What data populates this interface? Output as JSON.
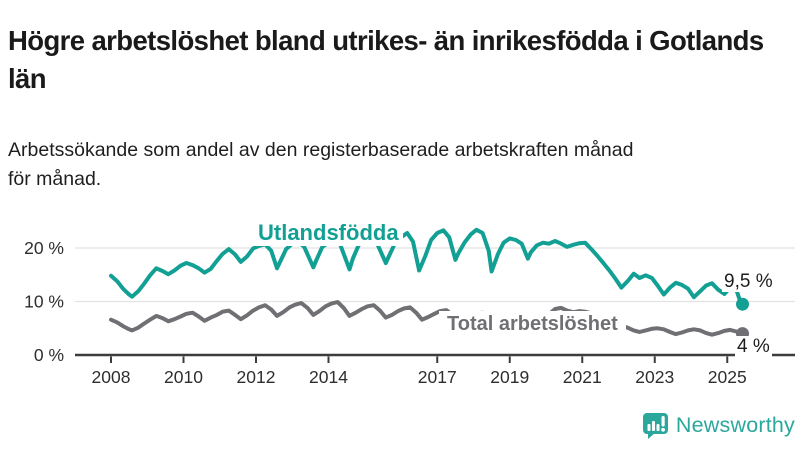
{
  "header": {
    "title": "Högre arbetslöshet bland utrikes- än inrikesfödda i Gotlands län",
    "subtitle": "Arbetssökande som andel av den registerbaserade arbetskraften månad för månad."
  },
  "chart_data": {
    "type": "line",
    "x_unit": "decimal_year",
    "x_range": [
      2008.0,
      2025.42
    ],
    "ylim": [
      0,
      25
    ],
    "grid": "horizontal",
    "y_ticks": [
      {
        "value": 0,
        "label": "0 %"
      },
      {
        "value": 10,
        "label": "10 %"
      },
      {
        "value": 20,
        "label": "20 %"
      }
    ],
    "x_ticks": [
      {
        "value": 2008,
        "label": "2008"
      },
      {
        "value": 2010,
        "label": "2010"
      },
      {
        "value": 2012,
        "label": "2012"
      },
      {
        "value": 2014,
        "label": "2014"
      },
      {
        "value": 2017,
        "label": "2017"
      },
      {
        "value": 2019,
        "label": "2019"
      },
      {
        "value": 2021,
        "label": "2021"
      },
      {
        "value": 2023,
        "label": "2023"
      },
      {
        "value": 2025,
        "label": "2025"
      }
    ],
    "series": [
      {
        "name": "Utlandsfödda",
        "color": "#13a094",
        "end_label": "9,5 %",
        "end_value": 9.5,
        "points": [
          [
            2008.0,
            14.8
          ],
          [
            2008.17,
            13.8
          ],
          [
            2008.33,
            12.4
          ],
          [
            2008.5,
            11.3
          ],
          [
            2008.58,
            10.9
          ],
          [
            2008.75,
            11.9
          ],
          [
            2008.92,
            13.4
          ],
          [
            2009.08,
            14.9
          ],
          [
            2009.25,
            16.2
          ],
          [
            2009.42,
            15.7
          ],
          [
            2009.58,
            15.1
          ],
          [
            2009.75,
            15.8
          ],
          [
            2009.92,
            16.7
          ],
          [
            2010.08,
            17.2
          ],
          [
            2010.25,
            16.8
          ],
          [
            2010.42,
            16.2
          ],
          [
            2010.58,
            15.4
          ],
          [
            2010.75,
            16.1
          ],
          [
            2010.92,
            17.6
          ],
          [
            2011.08,
            18.9
          ],
          [
            2011.25,
            19.8
          ],
          [
            2011.42,
            18.8
          ],
          [
            2011.58,
            17.4
          ],
          [
            2011.75,
            18.4
          ],
          [
            2011.92,
            19.9
          ],
          [
            2012.08,
            20.4
          ],
          [
            2012.25,
            20.7
          ],
          [
            2012.42,
            19.5
          ],
          [
            2012.58,
            16.2
          ],
          [
            2012.67,
            17.5
          ],
          [
            2012.83,
            19.8
          ],
          [
            2013.0,
            20.8
          ],
          [
            2013.17,
            21.2
          ],
          [
            2013.33,
            20.2
          ],
          [
            2013.58,
            16.4
          ],
          [
            2013.67,
            17.8
          ],
          [
            2013.83,
            20.2
          ],
          [
            2014.0,
            21.0
          ],
          [
            2014.17,
            21.8
          ],
          [
            2014.33,
            20.5
          ],
          [
            2014.58,
            16.0
          ],
          [
            2014.67,
            18.0
          ],
          [
            2014.83,
            20.5
          ],
          [
            2015.0,
            21.4
          ],
          [
            2015.17,
            22.3
          ],
          [
            2015.33,
            21.0
          ],
          [
            2015.58,
            17.2
          ],
          [
            2015.67,
            18.5
          ],
          [
            2015.83,
            20.8
          ],
          [
            2016.0,
            22.0
          ],
          [
            2016.17,
            22.8
          ],
          [
            2016.33,
            21.2
          ],
          [
            2016.5,
            15.8
          ],
          [
            2016.67,
            18.5
          ],
          [
            2016.83,
            21.5
          ],
          [
            2017.0,
            22.8
          ],
          [
            2017.17,
            23.3
          ],
          [
            2017.33,
            22.0
          ],
          [
            2017.5,
            17.8
          ],
          [
            2017.58,
            19.0
          ],
          [
            2017.75,
            21.0
          ],
          [
            2017.92,
            22.5
          ],
          [
            2018.08,
            23.4
          ],
          [
            2018.25,
            22.8
          ],
          [
            2018.42,
            19.5
          ],
          [
            2018.5,
            15.6
          ],
          [
            2018.67,
            18.8
          ],
          [
            2018.83,
            21.0
          ],
          [
            2019.0,
            21.8
          ],
          [
            2019.17,
            21.5
          ],
          [
            2019.33,
            20.8
          ],
          [
            2019.5,
            18.0
          ],
          [
            2019.58,
            19.2
          ],
          [
            2019.75,
            20.5
          ],
          [
            2019.92,
            21.0
          ],
          [
            2020.08,
            20.8
          ],
          [
            2020.25,
            21.3
          ],
          [
            2020.42,
            20.8
          ],
          [
            2020.58,
            20.2
          ],
          [
            2020.75,
            20.6
          ],
          [
            2020.92,
            20.9
          ],
          [
            2021.08,
            21.0
          ],
          [
            2021.25,
            19.8
          ],
          [
            2021.42,
            18.5
          ],
          [
            2021.58,
            17.2
          ],
          [
            2021.75,
            15.8
          ],
          [
            2021.92,
            14.2
          ],
          [
            2022.08,
            12.6
          ],
          [
            2022.25,
            13.8
          ],
          [
            2022.42,
            15.2
          ],
          [
            2022.58,
            14.4
          ],
          [
            2022.75,
            14.9
          ],
          [
            2022.92,
            14.4
          ],
          [
            2023.08,
            13.0
          ],
          [
            2023.25,
            11.3
          ],
          [
            2023.42,
            12.6
          ],
          [
            2023.58,
            13.5
          ],
          [
            2023.75,
            13.1
          ],
          [
            2023.92,
            12.4
          ],
          [
            2024.08,
            10.8
          ],
          [
            2024.25,
            11.9
          ],
          [
            2024.42,
            13.0
          ],
          [
            2024.58,
            13.4
          ],
          [
            2024.75,
            12.2
          ],
          [
            2024.92,
            11.4
          ],
          [
            2025.0,
            12.0
          ],
          [
            2025.17,
            13.2
          ],
          [
            2025.25,
            12.2
          ],
          [
            2025.33,
            10.6
          ],
          [
            2025.42,
            9.5
          ]
        ]
      },
      {
        "name": "Total arbetslöshet",
        "color": "#6f6f74",
        "end_label": "4 %",
        "end_value": 4.0,
        "points": [
          [
            2008.0,
            6.6
          ],
          [
            2008.17,
            6.1
          ],
          [
            2008.33,
            5.4
          ],
          [
            2008.5,
            4.8
          ],
          [
            2008.58,
            4.6
          ],
          [
            2008.75,
            5.1
          ],
          [
            2008.92,
            5.9
          ],
          [
            2009.08,
            6.6
          ],
          [
            2009.25,
            7.3
          ],
          [
            2009.42,
            6.9
          ],
          [
            2009.58,
            6.3
          ],
          [
            2009.75,
            6.7
          ],
          [
            2009.92,
            7.2
          ],
          [
            2010.08,
            7.7
          ],
          [
            2010.25,
            7.9
          ],
          [
            2010.42,
            7.2
          ],
          [
            2010.58,
            6.4
          ],
          [
            2010.75,
            7.0
          ],
          [
            2010.92,
            7.5
          ],
          [
            2011.08,
            8.1
          ],
          [
            2011.25,
            8.3
          ],
          [
            2011.42,
            7.5
          ],
          [
            2011.58,
            6.7
          ],
          [
            2011.75,
            7.4
          ],
          [
            2011.92,
            8.3
          ],
          [
            2012.08,
            8.9
          ],
          [
            2012.25,
            9.3
          ],
          [
            2012.42,
            8.5
          ],
          [
            2012.58,
            7.3
          ],
          [
            2012.75,
            8.0
          ],
          [
            2012.92,
            8.9
          ],
          [
            2013.08,
            9.4
          ],
          [
            2013.25,
            9.7
          ],
          [
            2013.42,
            8.8
          ],
          [
            2013.58,
            7.5
          ],
          [
            2013.75,
            8.2
          ],
          [
            2013.92,
            9.1
          ],
          [
            2014.08,
            9.6
          ],
          [
            2014.25,
            9.9
          ],
          [
            2014.42,
            8.8
          ],
          [
            2014.58,
            7.3
          ],
          [
            2014.75,
            7.9
          ],
          [
            2014.92,
            8.6
          ],
          [
            2015.08,
            9.1
          ],
          [
            2015.25,
            9.3
          ],
          [
            2015.42,
            8.3
          ],
          [
            2015.58,
            7.0
          ],
          [
            2015.75,
            7.5
          ],
          [
            2015.92,
            8.2
          ],
          [
            2016.08,
            8.7
          ],
          [
            2016.25,
            8.9
          ],
          [
            2016.42,
            7.9
          ],
          [
            2016.58,
            6.6
          ],
          [
            2016.75,
            7.1
          ],
          [
            2016.92,
            7.7
          ],
          [
            2017.08,
            8.2
          ],
          [
            2017.25,
            8.4
          ],
          [
            2017.42,
            7.5
          ],
          [
            2017.58,
            6.3
          ],
          [
            2017.75,
            6.8
          ],
          [
            2017.92,
            7.4
          ],
          [
            2018.08,
            7.8
          ],
          [
            2018.25,
            7.9
          ],
          [
            2018.42,
            7.0
          ],
          [
            2018.58,
            5.9
          ],
          [
            2018.75,
            6.4
          ],
          [
            2018.92,
            7.0
          ],
          [
            2019.08,
            7.4
          ],
          [
            2019.25,
            7.5
          ],
          [
            2019.42,
            6.7
          ],
          [
            2019.58,
            5.8
          ],
          [
            2019.75,
            6.3
          ],
          [
            2019.92,
            7.0
          ],
          [
            2020.08,
            7.6
          ],
          [
            2020.25,
            8.6
          ],
          [
            2020.42,
            8.8
          ],
          [
            2020.58,
            8.3
          ],
          [
            2020.75,
            8.0
          ],
          [
            2020.92,
            8.2
          ],
          [
            2021.08,
            8.1
          ],
          [
            2021.25,
            7.8
          ],
          [
            2021.42,
            7.1
          ],
          [
            2021.58,
            6.4
          ],
          [
            2021.75,
            6.1
          ],
          [
            2021.92,
            5.8
          ],
          [
            2022.08,
            5.5
          ],
          [
            2022.25,
            5.1
          ],
          [
            2022.42,
            4.6
          ],
          [
            2022.58,
            4.3
          ],
          [
            2022.75,
            4.6
          ],
          [
            2022.92,
            4.9
          ],
          [
            2023.08,
            5.0
          ],
          [
            2023.25,
            4.8
          ],
          [
            2023.42,
            4.3
          ],
          [
            2023.58,
            3.9
          ],
          [
            2023.75,
            4.2
          ],
          [
            2023.92,
            4.6
          ],
          [
            2024.08,
            4.8
          ],
          [
            2024.25,
            4.6
          ],
          [
            2024.42,
            4.1
          ],
          [
            2024.58,
            3.8
          ],
          [
            2024.75,
            4.1
          ],
          [
            2024.92,
            4.5
          ],
          [
            2025.08,
            4.7
          ],
          [
            2025.25,
            4.4
          ],
          [
            2025.42,
            4.0
          ]
        ]
      }
    ]
  },
  "footer": {
    "brand": "Newsworthy",
    "brand_color": "#2ba79c",
    "logo_icon": "newsworthy-speech-bubble-bar-chart-icon"
  }
}
